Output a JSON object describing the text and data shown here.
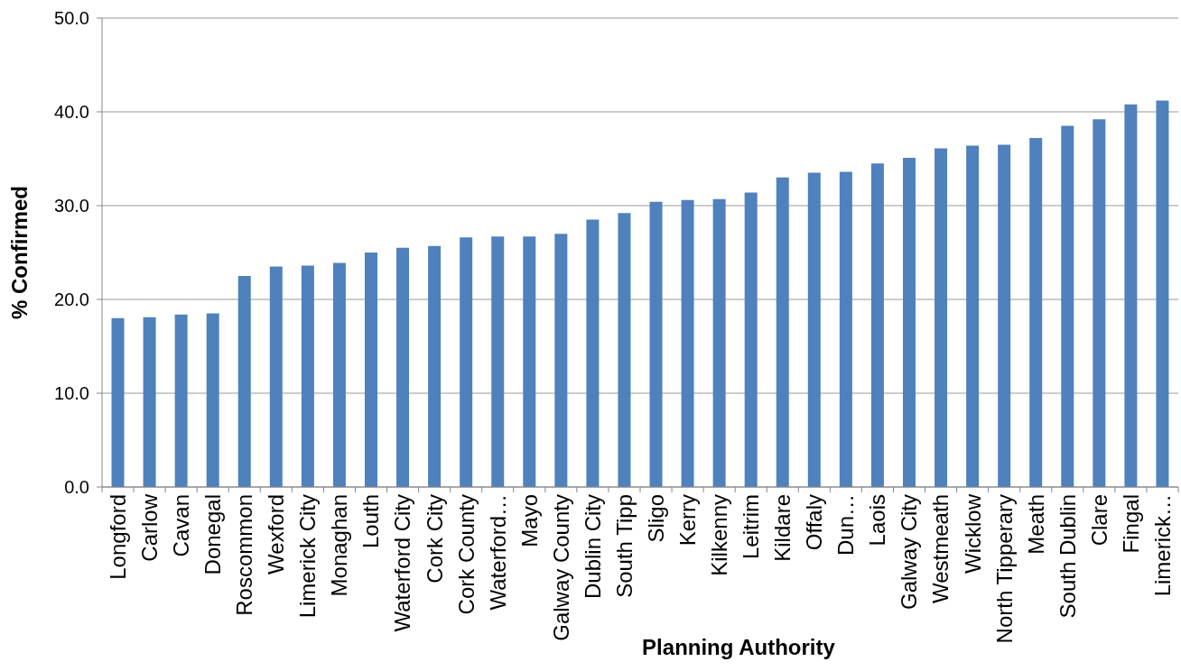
{
  "chart_data": {
    "type": "bar",
    "xlabel": "Planning Authority",
    "ylabel": "% Confirmed",
    "categories": [
      "Longford",
      "Carlow",
      "Cavan",
      "Donegal",
      "Roscommon",
      "Wexford",
      "Limerick City",
      "Monaghan",
      "Louth",
      "Waterford City",
      "Cork City",
      "Cork County",
      "Waterford…",
      "Mayo",
      "Galway County",
      "Dublin City",
      "South Tipp",
      "Sligo",
      "Kerry",
      "Kilkenny",
      "Leitrim",
      "Kildare",
      "Offaly",
      "Dun…",
      "Laois",
      "Galway City",
      "Westmeath",
      "Wicklow",
      "North Tipperary",
      "Meath",
      "South Dublin",
      "Clare",
      "Fingal",
      "Limerick…"
    ],
    "values": [
      18.0,
      18.1,
      18.4,
      18.5,
      22.5,
      23.5,
      23.6,
      23.9,
      25.0,
      25.5,
      25.7,
      26.6,
      26.7,
      26.7,
      27.0,
      28.5,
      29.2,
      30.4,
      30.6,
      30.7,
      31.4,
      33.0,
      33.5,
      33.6,
      34.5,
      35.1,
      36.1,
      36.4,
      36.5,
      37.2,
      38.5,
      39.2,
      40.8,
      41.2
    ],
    "color": "#4f81bd",
    "ylim": [
      0,
      50
    ],
    "yticks": [
      {
        "value": 0,
        "label": "0.0"
      },
      {
        "value": 10,
        "label": "10.0"
      },
      {
        "value": 20,
        "label": "20.0"
      },
      {
        "value": 30,
        "label": "30.0"
      },
      {
        "value": 40,
        "label": "40.0"
      },
      {
        "value": 50,
        "label": "50.0"
      }
    ],
    "grid": "y"
  }
}
